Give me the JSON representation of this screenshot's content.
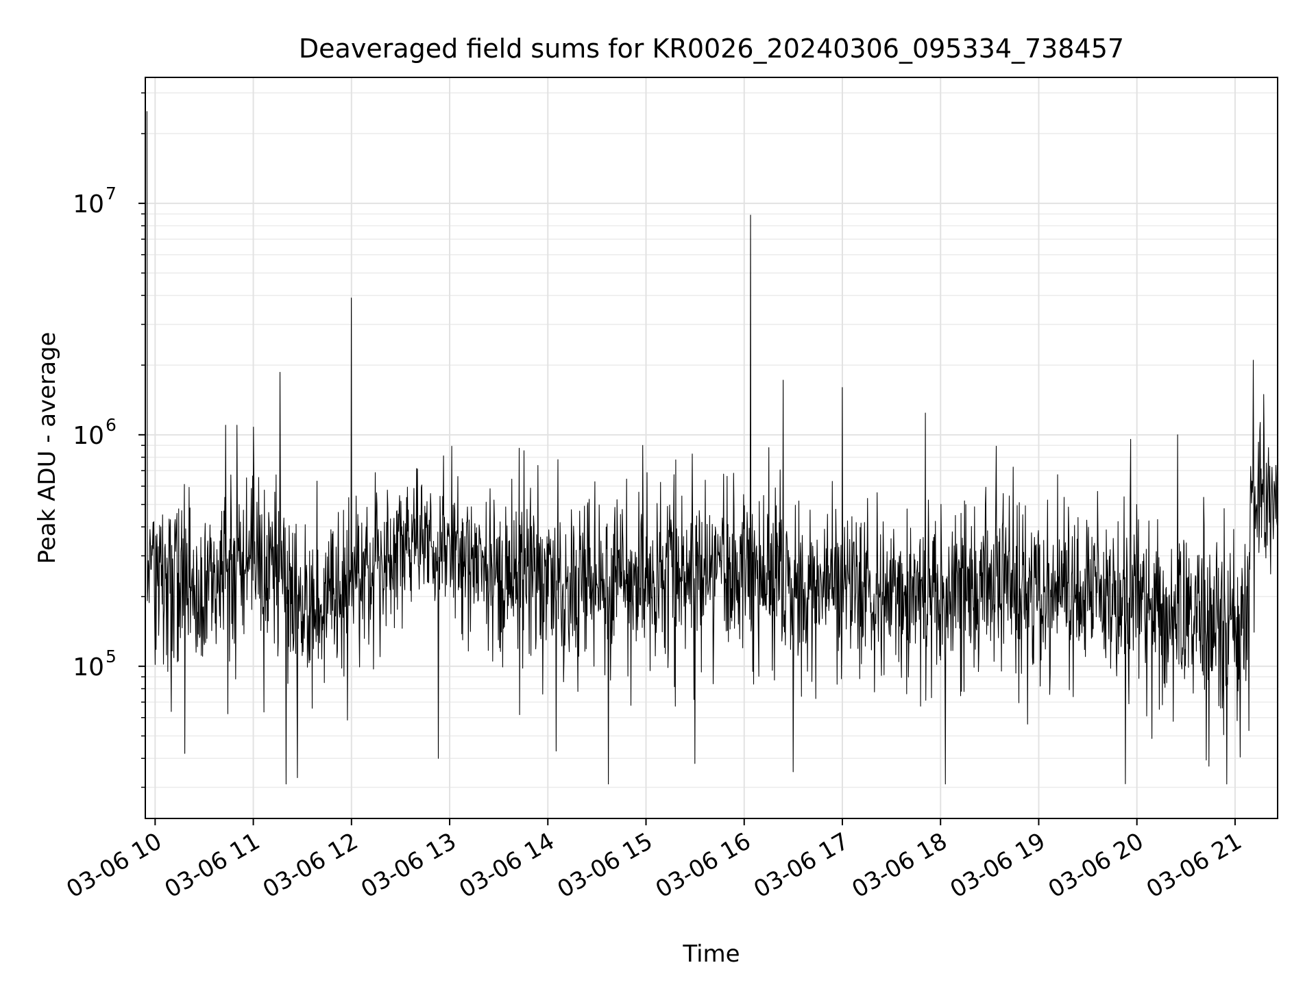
{
  "chart_data": {
    "type": "line",
    "title": "Deaveraged field sums for KR0026_20240306_095334_738457",
    "xlabel": "Time",
    "ylabel": "Peak ADU - average",
    "x_axis": {
      "type": "time",
      "range": [
        "2024-03-06T09:54:00",
        "2024-03-06T21:26:00"
      ],
      "tick_values": [
        "2024-03-06T10:00",
        "2024-03-06T11:00",
        "2024-03-06T12:00",
        "2024-03-06T13:00",
        "2024-03-06T14:00",
        "2024-03-06T15:00",
        "2024-03-06T16:00",
        "2024-03-06T17:00",
        "2024-03-06T18:00",
        "2024-03-06T19:00",
        "2024-03-06T20:00",
        "2024-03-06T21:00"
      ],
      "tick_labels": [
        "03-06 10",
        "03-06 11",
        "03-06 12",
        "03-06 13",
        "03-06 14",
        "03-06 15",
        "03-06 16",
        "03-06 17",
        "03-06 18",
        "03-06 19",
        "03-06 20",
        "03-06 21"
      ]
    },
    "y_axis": {
      "scale": "log",
      "range": [
        22000,
        35000000
      ],
      "tick_values": [
        100000,
        1000000,
        10000000
      ],
      "tick_labels": [
        {
          "base": "10",
          "exp": "5"
        },
        {
          "base": "10",
          "exp": "6"
        },
        {
          "base": "10",
          "exp": "7"
        }
      ]
    },
    "grid": true,
    "legend": "none",
    "line_color": "#000000",
    "series": [
      {
        "baseline_segments": [
          {
            "t": "2024-03-06T09:55",
            "median": 280000,
            "spread_dex": 0.17
          },
          {
            "t": "2024-03-06T10:30",
            "median": 200000,
            "spread_dex": 0.2
          },
          {
            "t": "2024-03-06T11:00",
            "median": 320000,
            "spread_dex": 0.14
          },
          {
            "t": "2024-03-06T11:30",
            "median": 190000,
            "spread_dex": 0.18
          },
          {
            "t": "2024-03-06T12:00",
            "median": 220000,
            "spread_dex": 0.17
          },
          {
            "t": "2024-03-06T12:40",
            "median": 350000,
            "spread_dex": 0.14
          },
          {
            "t": "2024-03-06T13:30",
            "median": 250000,
            "spread_dex": 0.17
          },
          {
            "t": "2024-03-06T14:30",
            "median": 220000,
            "spread_dex": 0.18
          },
          {
            "t": "2024-03-06T15:30",
            "median": 280000,
            "spread_dex": 0.17
          },
          {
            "t": "2024-03-06T16:15",
            "median": 250000,
            "spread_dex": 0.17
          },
          {
            "t": "2024-03-06T17:30",
            "median": 200000,
            "spread_dex": 0.17
          },
          {
            "t": "2024-03-06T18:30",
            "median": 230000,
            "spread_dex": 0.17
          },
          {
            "t": "2024-03-06T19:40",
            "median": 200000,
            "spread_dex": 0.18
          },
          {
            "t": "2024-03-06T20:40",
            "median": 160000,
            "spread_dex": 0.19
          },
          {
            "t": "2024-03-06T21:08",
            "median": 160000,
            "spread_dex": 0.17
          },
          {
            "t": "2024-03-06T21:10",
            "median": 500000,
            "spread_dex": 0.12
          },
          {
            "t": "2024-03-06T21:26",
            "median": 500000,
            "spread_dex": 0.12
          }
        ],
        "notable_peaks": [
          {
            "t": "2024-03-06T09:55",
            "value": 25000000
          },
          {
            "t": "2024-03-06T10:43",
            "value": 1100000
          },
          {
            "t": "2024-03-06T10:50",
            "value": 1100000
          },
          {
            "t": "2024-03-06T11:00",
            "value": 1080000
          },
          {
            "t": "2024-03-06T12:00",
            "value": 3900000
          },
          {
            "t": "2024-03-06T14:58",
            "value": 900000
          },
          {
            "t": "2024-03-06T16:04",
            "value": 8900000
          },
          {
            "t": "2024-03-06T16:15",
            "value": 880000
          },
          {
            "t": "2024-03-06T17:00",
            "value": 1600000
          },
          {
            "t": "2024-03-06T20:25",
            "value": 1000000
          },
          {
            "t": "2024-03-06T21:11",
            "value": 2100000
          },
          {
            "t": "2024-03-06T21:15",
            "value": 1040000
          }
        ],
        "notable_dips": [
          {
            "t": "2024-03-06T10:18",
            "value": 42000
          },
          {
            "t": "2024-03-06T11:20",
            "value": 31000
          },
          {
            "t": "2024-03-06T11:27",
            "value": 33000
          },
          {
            "t": "2024-03-06T12:53",
            "value": 40000
          },
          {
            "t": "2024-03-06T14:05",
            "value": 43000
          },
          {
            "t": "2024-03-06T14:37",
            "value": 31000
          },
          {
            "t": "2024-03-06T15:30",
            "value": 38000
          },
          {
            "t": "2024-03-06T16:30",
            "value": 35000
          },
          {
            "t": "2024-03-06T18:03",
            "value": 31000
          },
          {
            "t": "2024-03-06T20:44",
            "value": 37000
          },
          {
            "t": "2024-03-06T20:55",
            "value": 31000
          }
        ]
      }
    ]
  }
}
